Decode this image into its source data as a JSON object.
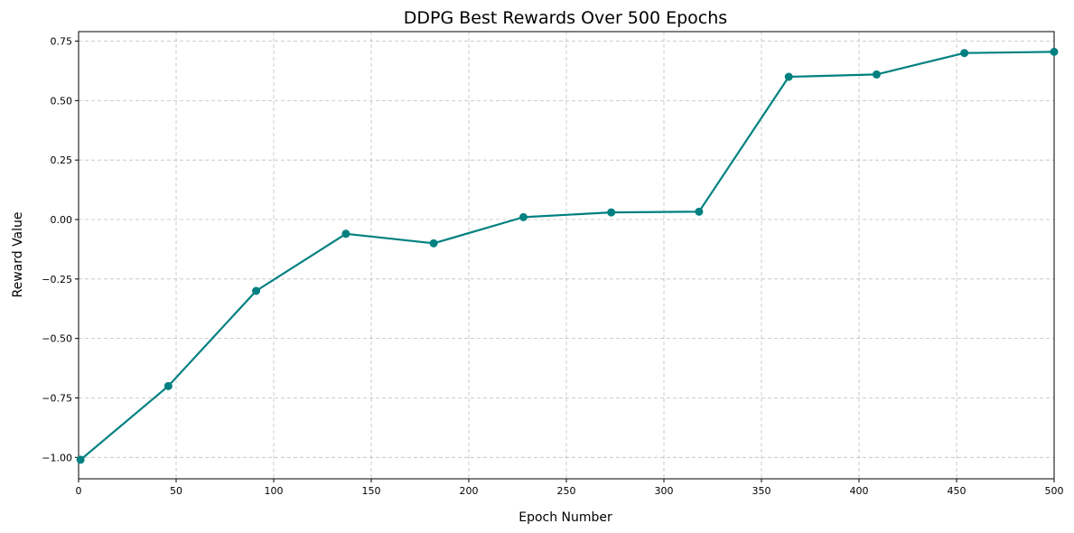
{
  "chart_data": {
    "type": "line",
    "title": "DDPG Best Rewards Over 500 Epochs",
    "xlabel": "Epoch Number",
    "ylabel": "Reward Value",
    "xlim": [
      0,
      500
    ],
    "ylim": [
      -1.09,
      0.79
    ],
    "x_ticks": [
      0,
      50,
      100,
      150,
      200,
      250,
      300,
      350,
      400,
      450,
      500
    ],
    "x_tick_labels": [
      "0",
      "50",
      "100",
      "150",
      "200",
      "250",
      "300",
      "350",
      "400",
      "450",
      "500"
    ],
    "y_ticks": [
      -1.0,
      -0.75,
      -0.5,
      -0.25,
      0.0,
      0.25,
      0.5,
      0.75
    ],
    "y_tick_labels": [
      "−1.00",
      "−0.75",
      "−0.50",
      "−0.25",
      "0.00",
      "0.25",
      "0.50",
      "0.75"
    ],
    "grid": true,
    "line_color": "#008080",
    "series": [
      {
        "x": [
          1,
          46,
          91,
          137,
          182,
          228,
          273,
          318,
          364,
          409,
          454,
          500
        ],
        "values": [
          -1.01,
          -0.7,
          -0.3,
          -0.06,
          -0.1,
          0.01,
          0.03,
          0.033,
          0.6,
          0.61,
          0.7,
          0.705
        ]
      }
    ]
  }
}
